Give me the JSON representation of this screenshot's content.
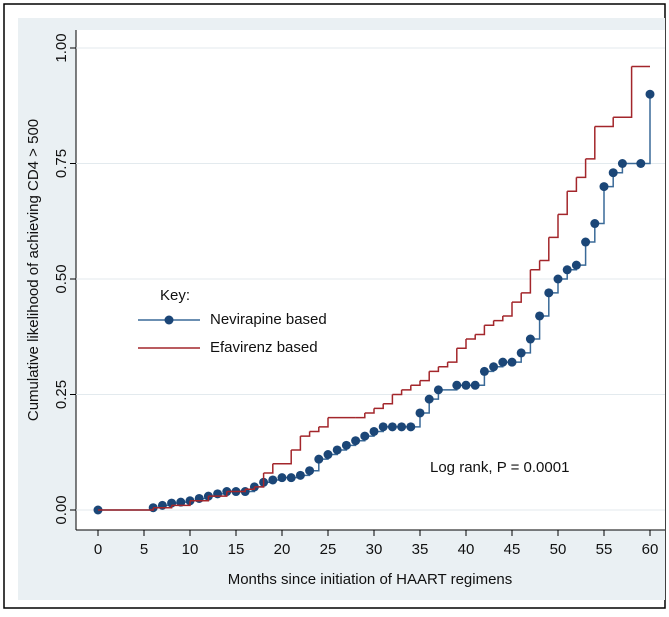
{
  "chart_data": {
    "type": "step",
    "xlabel": "Months since initiation of HAART regimens",
    "ylabel": "Cumulative likelihood of achieving CD4 > 500",
    "annotation": "Log rank, P = 0.0001",
    "legend_title": "Key:",
    "grid": true,
    "xlim": [
      0,
      60
    ],
    "ylim": [
      0,
      1
    ],
    "xticks": [
      0,
      5,
      10,
      15,
      20,
      25,
      30,
      35,
      40,
      45,
      50,
      55,
      60
    ],
    "yticks": [
      {
        "value": 0,
        "label": "0.00"
      },
      {
        "value": 0.25,
        "label": "0.25"
      },
      {
        "value": 0.5,
        "label": "0.50"
      },
      {
        "value": 0.75,
        "label": "0.75"
      },
      {
        "value": 1,
        "label": "1.00"
      }
    ],
    "series": [
      {
        "name": "Nevirapine based",
        "color": "#1b4677",
        "line_color": "#3a6a98",
        "markers": true,
        "x": [
          0,
          6,
          7,
          8,
          9,
          10,
          11,
          12,
          13,
          14,
          15,
          16,
          17,
          18,
          19,
          20,
          21,
          22,
          23,
          24,
          25,
          26,
          27,
          28,
          29,
          30,
          31,
          32,
          33,
          34,
          35,
          36,
          37,
          39,
          40,
          41,
          42,
          43,
          44,
          45,
          46,
          47,
          48,
          49,
          50,
          51,
          52,
          53,
          54,
          55,
          56,
          57,
          59,
          60
        ],
        "values": [
          0,
          0.005,
          0.01,
          0.015,
          0.017,
          0.02,
          0.025,
          0.03,
          0.035,
          0.04,
          0.04,
          0.04,
          0.05,
          0.06,
          0.065,
          0.07,
          0.07,
          0.075,
          0.085,
          0.11,
          0.12,
          0.13,
          0.14,
          0.15,
          0.16,
          0.17,
          0.18,
          0.18,
          0.18,
          0.18,
          0.21,
          0.24,
          0.26,
          0.27,
          0.27,
          0.27,
          0.3,
          0.31,
          0.32,
          0.32,
          0.34,
          0.37,
          0.42,
          0.47,
          0.5,
          0.52,
          0.53,
          0.58,
          0.62,
          0.7,
          0.73,
          0.75,
          0.75,
          0.9
        ]
      },
      {
        "name": "Efavirenz based",
        "color": "#a3262b",
        "markers": false,
        "x": [
          0,
          6,
          8,
          10,
          12,
          14,
          16,
          17,
          18,
          19,
          21,
          22,
          23,
          24,
          25,
          28,
          29,
          30,
          31,
          32,
          33,
          34,
          35,
          36,
          37,
          38,
          39,
          40,
          41,
          42,
          43,
          44,
          45,
          46,
          47,
          48,
          49,
          50,
          51,
          52,
          53,
          54,
          56,
          58,
          60
        ],
        "values": [
          0,
          0.005,
          0.01,
          0.02,
          0.03,
          0.04,
          0.045,
          0.05,
          0.08,
          0.1,
          0.13,
          0.16,
          0.17,
          0.18,
          0.2,
          0.2,
          0.21,
          0.22,
          0.23,
          0.25,
          0.26,
          0.27,
          0.28,
          0.3,
          0.31,
          0.32,
          0.35,
          0.37,
          0.38,
          0.4,
          0.41,
          0.42,
          0.45,
          0.47,
          0.52,
          0.54,
          0.59,
          0.64,
          0.69,
          0.72,
          0.76,
          0.83,
          0.85,
          0.96,
          0.96
        ]
      }
    ]
  }
}
